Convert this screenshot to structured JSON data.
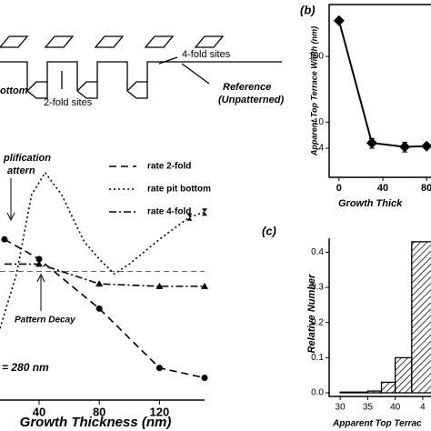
{
  "diagram": {
    "labels": [
      "4-fold sites",
      "2-fold sites",
      "Reference",
      "(Unpatterned)",
      "ottom"
    ]
  },
  "chart_data": [
    {
      "type": "line",
      "annotations": [
        "plification",
        "attern",
        "Pattern Decay",
        "= 280 nm"
      ],
      "x_label": "Growth Thickness (nm)",
      "xlim": [
        14,
        150
      ],
      "ylim": [
        0,
        1
      ],
      "xticks": [
        40,
        80,
        120
      ],
      "reference_value": 0.52,
      "series": [
        {
          "name": "rate 2-fold",
          "color": "#000",
          "style": "dashed",
          "marker": "circle",
          "x": [
            17,
            40,
            80,
            120,
            150
          ],
          "values": [
            0.65,
            0.57,
            0.37,
            0.13,
            0.09
          ]
        },
        {
          "name": "rate pit bottom",
          "color": "#000",
          "style": "dotted",
          "marker": "hourglass",
          "x": [
            14,
            25,
            35,
            44,
            55,
            70,
            80,
            90,
            100,
            120,
            140,
            150
          ],
          "values": [
            0.29,
            0.51,
            0.83,
            0.92,
            0.83,
            0.64,
            0.57,
            0.51,
            0.55,
            0.65,
            0.74,
            0.76
          ]
        },
        {
          "name": "rate 4-fold",
          "color": "#000",
          "style": "dashdot",
          "marker": "triangle",
          "x": [
            17,
            40,
            80,
            120,
            150
          ],
          "values": [
            0.55,
            0.55,
            0.47,
            0.46,
            0.46
          ]
        }
      ]
    },
    {
      "type": "line",
      "panel": "(b)",
      "y_label": "Apparent Top Terrace Width (nm)",
      "x_label": "Growth Thick",
      "xlim": [
        -9,
        84
      ],
      "ylim": [
        1.44,
        617
      ],
      "log_y": true,
      "xticks": [
        0,
        40,
        80
      ],
      "yticks": [
        4,
        10,
        100
      ],
      "series": [
        {
          "color": "#000",
          "x": [
            0,
            30,
            60,
            80
          ],
          "values": [
            350,
            4.8,
            4.2,
            4.3
          ],
          "errors": [
            0,
            0.8,
            0.7,
            0
          ]
        }
      ]
    },
    {
      "type": "histogram",
      "panel": "(c)",
      "y_label": "Relative Number",
      "x_label": "Apparent Top Terrac",
      "xlim": [
        28,
        46.5
      ],
      "ylim": [
        0,
        0.44
      ],
      "xticks": [
        30,
        35,
        40,
        {
          "value": 45,
          "label": "4"
        }
      ],
      "yticks": [
        {
          "value": 0,
          "label": "0.0"
        },
        0.1,
        0.2,
        0.3,
        0.4
      ],
      "bins": [
        30,
        35,
        37.5,
        40,
        43,
        47
      ],
      "values": [
        0.002,
        0.005,
        0.03,
        0.1,
        0.43
      ]
    }
  ]
}
